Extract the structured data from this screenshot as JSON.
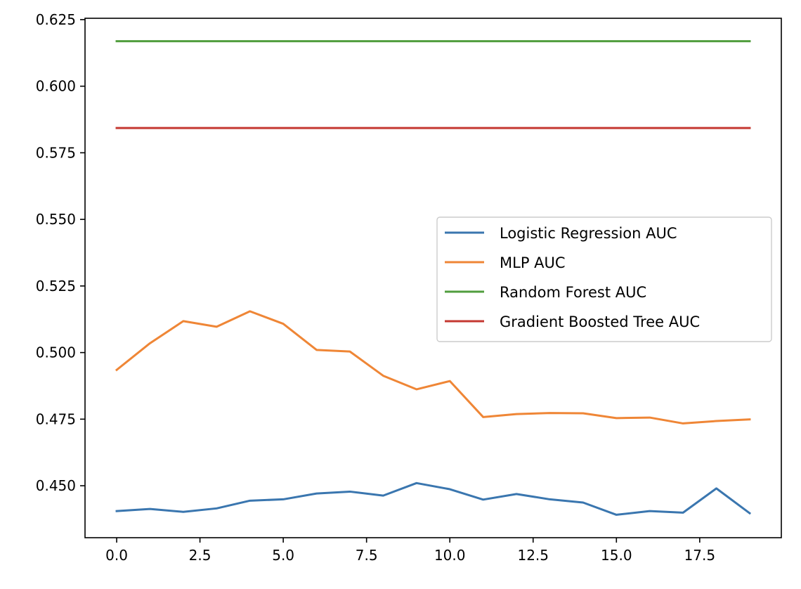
{
  "chart_data": {
    "type": "line",
    "title": "",
    "xlabel": "",
    "ylabel": "",
    "x": [
      0,
      1,
      2,
      3,
      4,
      5,
      6,
      7,
      8,
      9,
      10,
      11,
      12,
      13,
      14,
      15,
      16,
      17,
      18,
      19
    ],
    "xlim": [
      -0.95,
      19.95
    ],
    "ylim": [
      0.4305,
      0.6255
    ],
    "xticks": [
      0.0,
      2.5,
      5.0,
      7.5,
      10.0,
      12.5,
      15.0,
      17.5
    ],
    "xtick_labels": [
      "0.0",
      "2.5",
      "5.0",
      "7.5",
      "10.0",
      "12.5",
      "15.0",
      "17.5"
    ],
    "yticks": [
      0.45,
      0.475,
      0.5,
      0.525,
      0.55,
      0.575,
      0.6,
      0.625
    ],
    "ytick_labels": [
      "0.450",
      "0.475",
      "0.500",
      "0.525",
      "0.550",
      "0.575",
      "0.600",
      "0.625"
    ],
    "grid": false,
    "legend_position": "center-right",
    "series": [
      {
        "name": "Logistic Regression AUC",
        "color": "#3a76af",
        "values": [
          0.4405,
          0.4413,
          0.4402,
          0.4415,
          0.4444,
          0.4449,
          0.4471,
          0.4478,
          0.4463,
          0.451,
          0.4487,
          0.4448,
          0.4469,
          0.4449,
          0.4437,
          0.4391,
          0.4405,
          0.4399,
          0.449,
          0.4397
        ]
      },
      {
        "name": "MLP AUC",
        "color": "#ef8636",
        "values": [
          0.4935,
          0.5035,
          0.5118,
          0.5097,
          0.5155,
          0.5108,
          0.501,
          0.5004,
          0.4913,
          0.4862,
          0.4893,
          0.4758,
          0.4769,
          0.4773,
          0.4772,
          0.4754,
          0.4756,
          0.4734,
          0.4743,
          0.4749
        ]
      },
      {
        "name": "Random Forest AUC",
        "color": "#519e3e",
        "values": [
          0.6169,
          0.6169,
          0.6169,
          0.6169,
          0.6169,
          0.6169,
          0.6169,
          0.6169,
          0.6169,
          0.6169,
          0.6169,
          0.6169,
          0.6169,
          0.6169,
          0.6169,
          0.6169,
          0.6169,
          0.6169,
          0.6169,
          0.6169
        ]
      },
      {
        "name": "Gradient Boosted Tree AUC",
        "color": "#c53932",
        "values": [
          0.5843,
          0.5843,
          0.5843,
          0.5843,
          0.5843,
          0.5843,
          0.5843,
          0.5843,
          0.5843,
          0.5843,
          0.5843,
          0.5843,
          0.5843,
          0.5843,
          0.5843,
          0.5843,
          0.5843,
          0.5843,
          0.5843,
          0.5843
        ]
      }
    ]
  }
}
